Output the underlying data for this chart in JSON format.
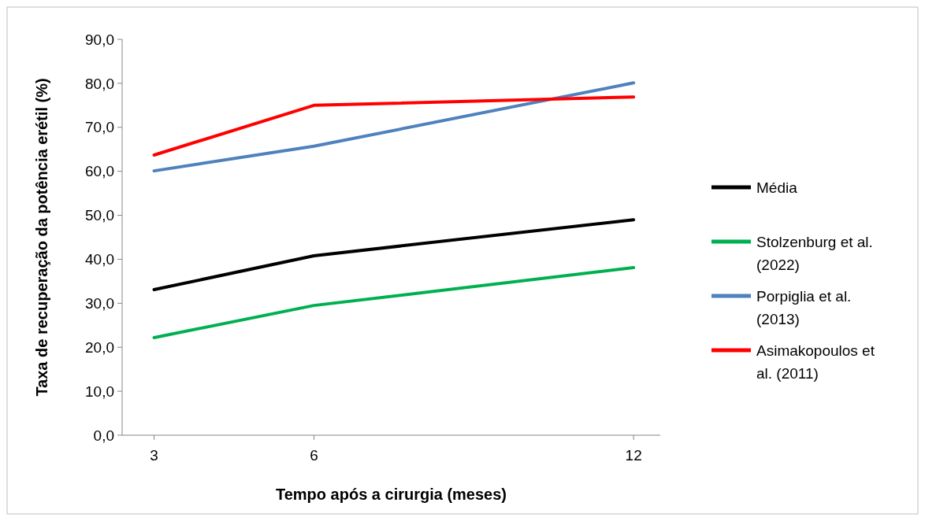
{
  "chart_data": {
    "type": "line",
    "xlabel": "Tempo após a cirurgia (meses)",
    "ylabel": "Taxa de recuperação da potência erétil (%)",
    "x": [
      3,
      6,
      12
    ],
    "xlim": [
      2.4,
      12.5
    ],
    "xticks": [
      3,
      6,
      12
    ],
    "ylim": [
      0,
      90
    ],
    "yticks": [
      {
        "value": 0,
        "label": "0,0"
      },
      {
        "value": 10,
        "label": "10,0"
      },
      {
        "value": 20,
        "label": "20,0"
      },
      {
        "value": 30,
        "label": "30,0"
      },
      {
        "value": 40,
        "label": "40,0"
      },
      {
        "value": 50,
        "label": "50,0"
      },
      {
        "value": 60,
        "label": "60,0"
      },
      {
        "value": 70,
        "label": "70,0"
      },
      {
        "value": 80,
        "label": "80,0"
      },
      {
        "value": 90,
        "label": "90,0"
      }
    ],
    "legend": "right",
    "marker": "none",
    "series": [
      {
        "name": "Média",
        "color": "#000000",
        "values": [
          33.1,
          40.8,
          49.0
        ]
      },
      {
        "name": "Stolzenburg et al. (2022)",
        "color": "#00b050",
        "values": [
          22.2,
          29.5,
          38.1
        ]
      },
      {
        "name": "Porpiglia et al. (2013)",
        "color": "#4f81bd",
        "values": [
          60.1,
          65.7,
          80.1
        ]
      },
      {
        "name": "Asimakopoulos et al. (2011)",
        "color": "#ff0000",
        "values": [
          63.7,
          75.0,
          76.9
        ]
      }
    ]
  }
}
